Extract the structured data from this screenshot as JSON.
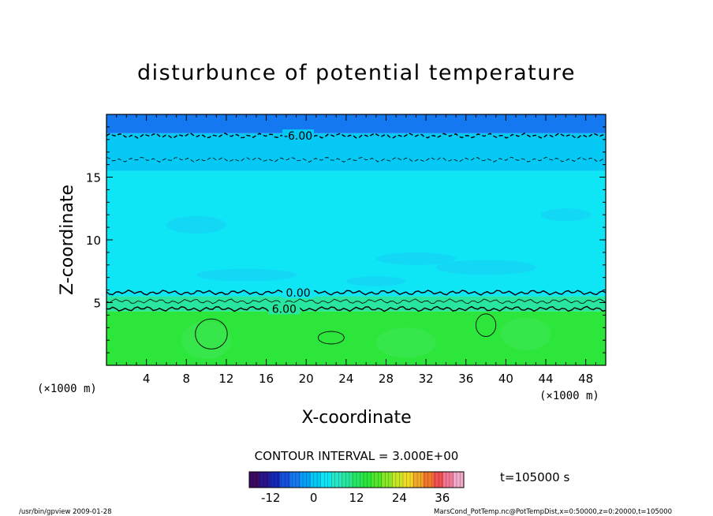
{
  "chart_data": {
    "type": "heatmap",
    "title": "disturbunce of potential temperature",
    "xlabel": "X-coordinate",
    "ylabel": "Z-coordinate",
    "x_unit_left": "(×1000 m)",
    "x_unit_right": "(×1000 m)",
    "xlim": [
      0,
      50
    ],
    "ylim": [
      0,
      20
    ],
    "x_ticks": [
      4,
      8,
      12,
      16,
      20,
      24,
      28,
      32,
      36,
      40,
      44,
      48
    ],
    "y_ticks": [
      5,
      10,
      15
    ],
    "bands": [
      {
        "z_min": 0,
        "z_max": 4.3,
        "value": 9,
        "color": "#2ce63c"
      },
      {
        "z_min": 4.3,
        "z_max": 5.5,
        "value": 3,
        "color": "#28e6a0"
      },
      {
        "z_min": 5.5,
        "z_max": 15.5,
        "value": -3,
        "color": "#0fe6f5"
      },
      {
        "z_min": 15.5,
        "z_max": 18.5,
        "value": -6,
        "color": "#05c8f5"
      },
      {
        "z_min": 18.5,
        "z_max": 20,
        "value": -12,
        "color": "#1478f0"
      }
    ],
    "contours": [
      {
        "value": -6,
        "label": "-6.00",
        "z": 18.3,
        "style": "dashed"
      },
      {
        "value": -3,
        "label": "",
        "z": 16.4,
        "style": "dashed"
      },
      {
        "value": 0,
        "label": "0.00",
        "z": 5.8,
        "style": "solid"
      },
      {
        "value": 3,
        "label": "",
        "z": 5.1,
        "style": "solid"
      },
      {
        "value": 6,
        "label": "6.00",
        "z": 4.5,
        "style": "solid"
      }
    ],
    "contour_interval_text": "CONTOUR INTERVAL = 3.000E+00",
    "time_text": "t=105000 s",
    "colorbar": {
      "min": -18,
      "max": 42,
      "ticks": [
        -12,
        0,
        12,
        24,
        36
      ],
      "colors": [
        "#3c0a64",
        "#28148c",
        "#1428b4",
        "#1450dc",
        "#1478f0",
        "#05a0f5",
        "#05c8f5",
        "#0fe6f5",
        "#28e6c8",
        "#28e6a0",
        "#28e664",
        "#2ce63c",
        "#50e628",
        "#8ce628",
        "#c8e628",
        "#f0dc28",
        "#f0aa28",
        "#f07828",
        "#f05050",
        "#f07896",
        "#f0aac8"
      ]
    }
  },
  "footer": {
    "left": "/usr/bin/gpview   2009-01-28",
    "right": "MarsCond_PotTemp.nc@PotTempDist,x=0:50000,z=0:20000,t=105000"
  }
}
